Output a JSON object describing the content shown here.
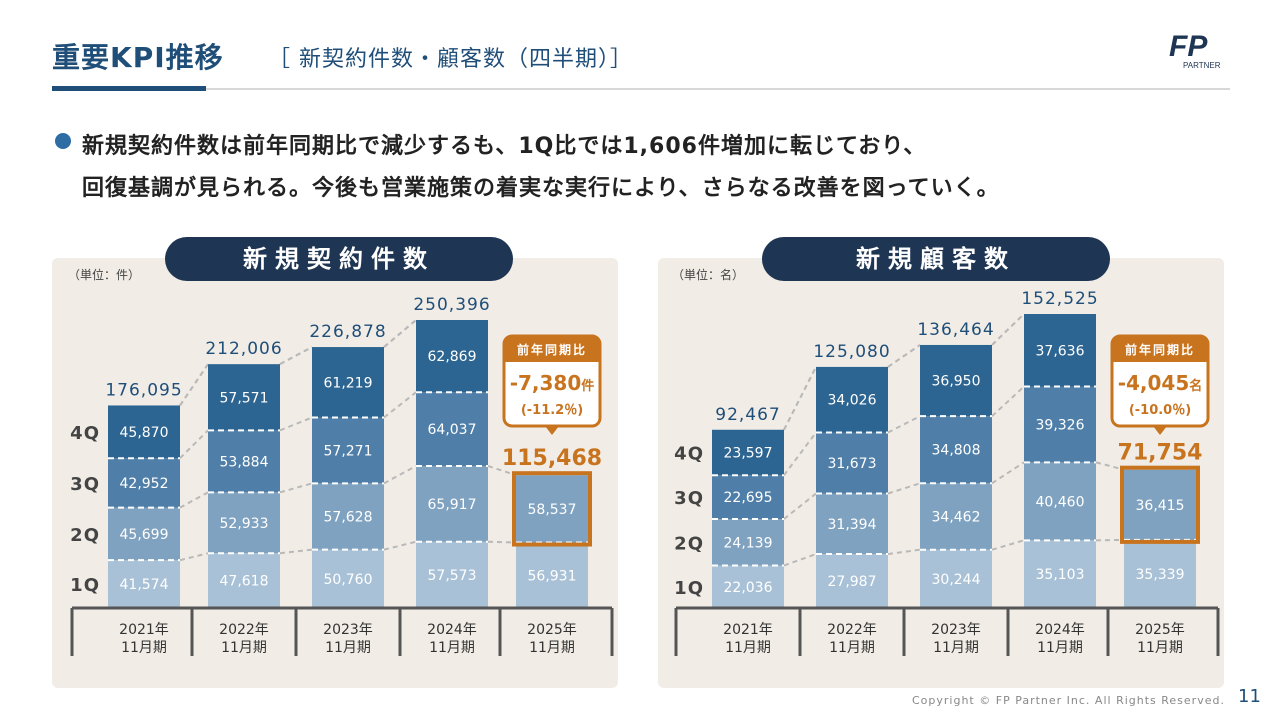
{
  "header": {
    "title": "重要KPI推移",
    "subtitle": "［ 新契約件数・顧客数（四半期）］"
  },
  "logo": {
    "text": "FP",
    "sub": "PARTNER"
  },
  "summary": {
    "line1": "新規契約件数は前年同期比で減少するも、1Q比では1,606件増加に転じており、",
    "line2": "回復基調が見られる。今後も営業施策の着実な実行により、さらなる改善を図っていく。"
  },
  "footer": {
    "copyright": "Copyright © FP Partner Inc. All Rights Reserved.",
    "page": "11"
  },
  "colors": {
    "q1": "#a9c1d6",
    "q2": "#7fa2c0",
    "q3": "#4f7fa8",
    "q4": "#2d6592",
    "highlight": "#c8731e",
    "navy": "#1e3553",
    "panel": "#f1ede6"
  },
  "chart_data": [
    {
      "type": "bar",
      "title": "新規契約件数",
      "unit_label": "（単位：件）",
      "quarter_labels": [
        "1Q",
        "2Q",
        "3Q",
        "4Q"
      ],
      "categories": [
        "2021年\n11月期",
        "2022年\n11月期",
        "2023年\n11月期",
        "2024年\n11月期",
        "2025年\n11月期"
      ],
      "totals": [
        "176,095",
        "212,006",
        "226,878",
        "250,396",
        "115,468"
      ],
      "series": [
        {
          "name": "1Q",
          "values": [
            41574,
            47618,
            50760,
            57573,
            56931
          ]
        },
        {
          "name": "2Q",
          "values": [
            45699,
            52933,
            57628,
            65917,
            58537
          ]
        },
        {
          "name": "3Q",
          "values": [
            42952,
            53884,
            57271,
            64037,
            null
          ]
        },
        {
          "name": "4Q",
          "values": [
            45870,
            57571,
            61219,
            62869,
            null
          ]
        }
      ],
      "stacked": true,
      "callout": {
        "heading": "前年同期比",
        "value": "-7,380",
        "unit": "件",
        "pct": "(-11.2％)"
      }
    },
    {
      "type": "bar",
      "title": "新規顧客数",
      "unit_label": "（単位：名）",
      "quarter_labels": [
        "1Q",
        "2Q",
        "3Q",
        "4Q"
      ],
      "categories": [
        "2021年\n11月期",
        "2022年\n11月期",
        "2023年\n11月期",
        "2024年\n11月期",
        "2025年\n11月期"
      ],
      "totals": [
        "92,467",
        "125,080",
        "136,464",
        "152,525",
        "71,754"
      ],
      "series": [
        {
          "name": "1Q",
          "values": [
            22036,
            27987,
            30244,
            35103,
            35339
          ]
        },
        {
          "name": "2Q",
          "values": [
            24139,
            31394,
            34462,
            40460,
            36415
          ]
        },
        {
          "name": "3Q",
          "values": [
            22695,
            31673,
            34808,
            39326,
            null
          ]
        },
        {
          "name": "4Q",
          "values": [
            23597,
            34026,
            36950,
            37636,
            null
          ]
        }
      ],
      "stacked": true,
      "callout": {
        "heading": "前年同期比",
        "value": "-4,045",
        "unit": "名",
        "pct": "(-10.0％)"
      }
    }
  ]
}
